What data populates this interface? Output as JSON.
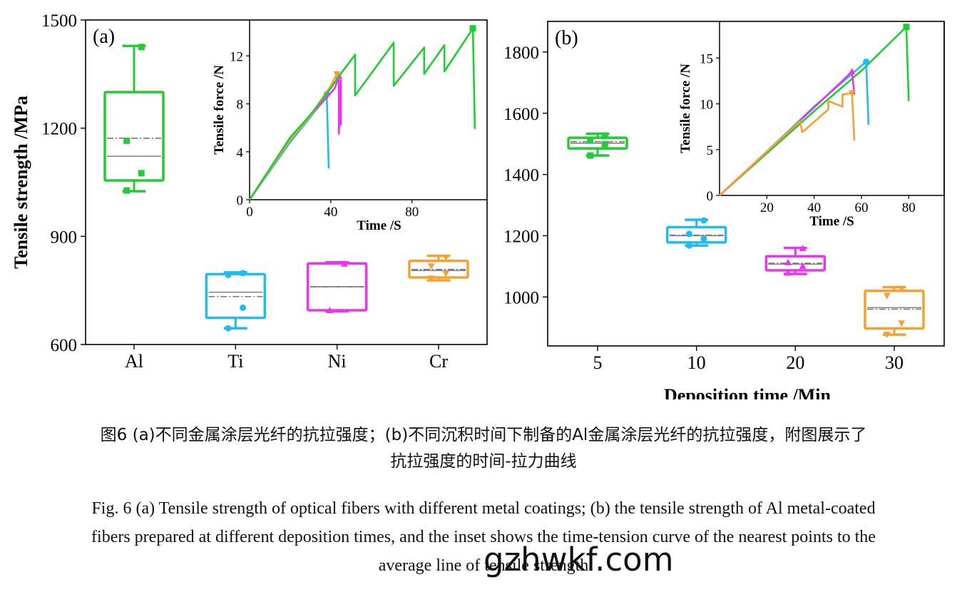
{
  "colors": {
    "Al": "#22cc33",
    "Ti": "#22bbee",
    "Ni": "#ee33ee",
    "Cr": "#f5a030",
    "mean": "#777777",
    "median": "#888888"
  },
  "chart_data": [
    {
      "type": "box",
      "panel_label": "(a)",
      "ylabel": "Tensile strength /MPa",
      "xlabel": "",
      "ylim": [
        600,
        1500
      ],
      "yticks": [
        600,
        900,
        1200,
        1500
      ],
      "categories": [
        "Al",
        "Ti",
        "Ni",
        "Cr"
      ],
      "boxes": [
        {
          "category": "Al",
          "color": "Al",
          "whisker_low": 1025,
          "q1": 1055,
          "median": 1122,
          "mean": 1172,
          "q3": 1300,
          "whisker_high": 1428,
          "points": [
            1027,
            1075,
            1165,
            1425
          ],
          "marker": "square"
        },
        {
          "category": "Ti",
          "color": "Ti",
          "whisker_low": 645,
          "q1": 674,
          "median": 745,
          "mean": 733,
          "q3": 795,
          "whisker_high": 800,
          "points": [
            645,
            702,
            793,
            798
          ],
          "marker": "circle"
        },
        {
          "category": "Ni",
          "color": "Ni",
          "whisker_low": 692,
          "q1": 695,
          "median": 760,
          "mean": 760,
          "q3": 825,
          "whisker_high": 828,
          "points": [
            694,
            823
          ],
          "marker": "triangle-up"
        },
        {
          "category": "Cr",
          "color": "Cr",
          "whisker_low": 778,
          "q1": 786,
          "median": 805,
          "mean": 808,
          "q3": 832,
          "whisker_high": 846,
          "points": [
            784,
            798,
            818,
            842
          ],
          "marker": "triangle-down"
        }
      ]
    },
    {
      "type": "line",
      "inset_of": "(a)",
      "xlabel": "Time /S",
      "ylabel": "Tensile force /N",
      "xlim": [
        0,
        117
      ],
      "ylim": [
        0,
        15
      ],
      "xticks": [
        0,
        40,
        80
      ],
      "yticks": [
        0,
        4,
        8,
        12
      ],
      "series": [
        {
          "color": "Ti",
          "x": [
            0,
            10,
            20,
            30,
            38,
            38,
            39
          ],
          "y": [
            0,
            2.4,
            4.8,
            6.9,
            8.8,
            8.8,
            2.6
          ],
          "marker": "circle"
        },
        {
          "color": "Ni",
          "x": [
            0,
            10,
            20,
            30,
            42,
            44,
            44,
            45,
            45
          ],
          "y": [
            0,
            2.5,
            5,
            7,
            9.3,
            10.3,
            5.5,
            10.0,
            6.2
          ],
          "marker": "triangle-up"
        },
        {
          "color": "Cr",
          "x": [
            0,
            10,
            20,
            30,
            40,
            43,
            43
          ],
          "y": [
            0,
            2.5,
            5,
            7,
            9.5,
            10.5,
            10.4
          ],
          "marker": "triangle-down"
        },
        {
          "color": "Al",
          "x": [
            0,
            10,
            20,
            30,
            40,
            44,
            52,
            52,
            71,
            71,
            86,
            86,
            96,
            96,
            110,
            110,
            111
          ],
          "y": [
            0,
            2.6,
            5.2,
            7.1,
            9.3,
            10.3,
            12.1,
            8.7,
            13.1,
            9.5,
            12.7,
            10.5,
            12.9,
            10.7,
            14.3,
            14.3,
            5.9
          ],
          "marker": "square"
        }
      ]
    },
    {
      "type": "box",
      "panel_label": "(b)",
      "xlabel": "Deposition time /Min",
      "ylabel": "",
      "ylim": [
        840,
        1900
      ],
      "yticks": [
        1000,
        1200,
        1400,
        1600,
        1800
      ],
      "categories": [
        "5",
        "10",
        "20",
        "30"
      ],
      "boxes": [
        {
          "category": "5",
          "color": "Al",
          "whisker_low": 1462,
          "q1": 1485,
          "median": 1502,
          "mean": 1507,
          "q3": 1520,
          "whisker_high": 1533,
          "points": [
            1462,
            1498,
            1512,
            1527
          ],
          "marker": "square"
        },
        {
          "category": "10",
          "color": "Ti",
          "whisker_low": 1168,
          "q1": 1178,
          "median": 1200,
          "mean": 1202,
          "q3": 1228,
          "whisker_high": 1252,
          "points": [
            1168,
            1190,
            1206,
            1250
          ],
          "marker": "circle"
        },
        {
          "category": "20",
          "color": "Ni",
          "whisker_low": 1075,
          "q1": 1087,
          "median": 1107,
          "mean": 1110,
          "q3": 1133,
          "whisker_high": 1160,
          "points": [
            1078,
            1100,
            1112,
            1158
          ],
          "marker": "triangle-up"
        },
        {
          "category": "30",
          "color": "Cr",
          "whisker_low": 877,
          "q1": 897,
          "median": 965,
          "mean": 960,
          "q3": 1020,
          "whisker_high": 1032,
          "points": [
            878,
            915,
            1005,
            1028
          ],
          "marker": "triangle-down"
        }
      ]
    },
    {
      "type": "line",
      "inset_of": "(b)",
      "xlabel": "Time /S",
      "ylabel": "Tensile force /N",
      "xlim": [
        0,
        95
      ],
      "ylim": [
        0,
        19
      ],
      "xticks": [
        20,
        40,
        60,
        80
      ],
      "yticks": [
        0,
        5,
        10,
        15
      ],
      "series": [
        {
          "color": "Al",
          "x": [
            0,
            20,
            40,
            60,
            79,
            79,
            80
          ],
          "y": [
            0,
            4.6,
            9.2,
            13.6,
            18.4,
            18.4,
            10.3
          ],
          "marker": "square"
        },
        {
          "color": "Ti",
          "x": [
            0,
            20,
            40,
            62,
            62,
            63
          ],
          "y": [
            0,
            4.8,
            9.7,
            14.6,
            14.6,
            7.7
          ],
          "marker": "circle"
        },
        {
          "color": "Ni",
          "x": [
            0,
            20,
            40,
            56,
            56,
            57
          ],
          "y": [
            0,
            4.8,
            9.6,
            13.5,
            13.5,
            11.0
          ],
          "marker": "triangle-up"
        },
        {
          "color": "Cr",
          "x": [
            0,
            20,
            34,
            35,
            46,
            46,
            52,
            52,
            56,
            56,
            57
          ],
          "y": [
            0,
            4.8,
            8.1,
            6.9,
            9.4,
            10.3,
            9.7,
            11.0,
            11.2,
            11.2,
            6.0
          ],
          "marker": "triangle-down"
        }
      ]
    }
  ],
  "caption": {
    "cn_line1": "图6 (a)不同金属涂层光纤的抗拉强度；(b)不同沉积时间下制备的Al金属涂层光纤的抗拉强度，附图展示了",
    "cn_line2": "抗拉强度的时间-拉力曲线",
    "en_line1": "Fig. 6 (a) Tensile strength of optical fibers with different metal coatings; (b) the tensile strength of Al metal-coated",
    "en_line2": "fibers prepared at different deposition times, and the inset shows the time-tension curve of the nearest points to the",
    "en_line3": "average line of tensile strength"
  },
  "watermark": "gzhwkf.com"
}
